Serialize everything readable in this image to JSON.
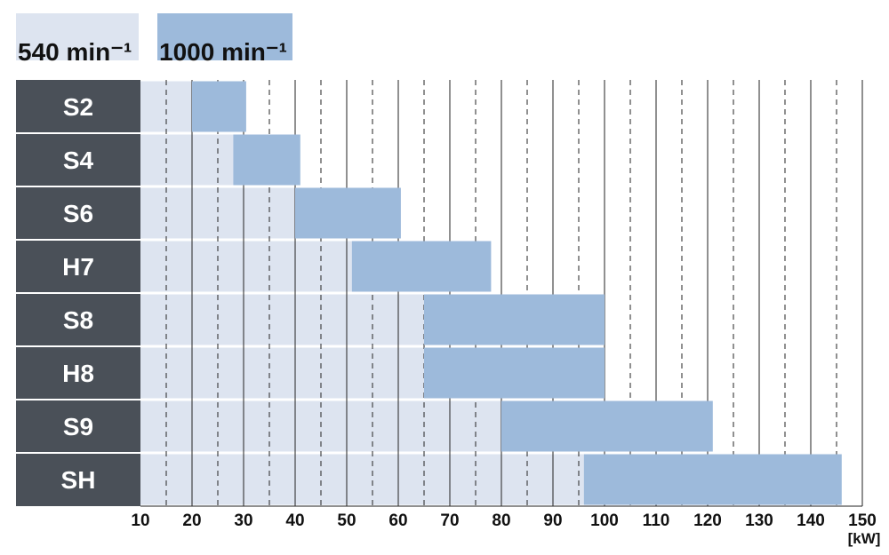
{
  "chart_data": {
    "type": "range-bar",
    "categories": [
      "S2",
      "S4",
      "S6",
      "H7",
      "S8",
      "H8",
      "S9",
      "SH"
    ],
    "series": [
      {
        "name": "540 min⁻¹",
        "color": "#dde4f0",
        "starts": [
          10,
          10,
          10,
          10,
          10,
          10,
          10,
          10
        ],
        "ends": [
          20,
          28,
          40,
          51,
          65,
          65,
          80,
          96
        ]
      },
      {
        "name": "1000 min⁻¹",
        "color": "#9dbadb",
        "starts": [
          20,
          28,
          40,
          51,
          65,
          65,
          80,
          96
        ],
        "ends": [
          30.5,
          41,
          60.5,
          78,
          100,
          100,
          121,
          146
        ]
      }
    ],
    "xlim": [
      10,
      150
    ],
    "xticks": [
      10,
      20,
      30,
      40,
      50,
      60,
      70,
      80,
      90,
      100,
      110,
      120,
      130,
      140,
      150
    ],
    "x_label": "[kW]",
    "grid": true,
    "minor_grid": true,
    "category_color": "#4a5058"
  }
}
